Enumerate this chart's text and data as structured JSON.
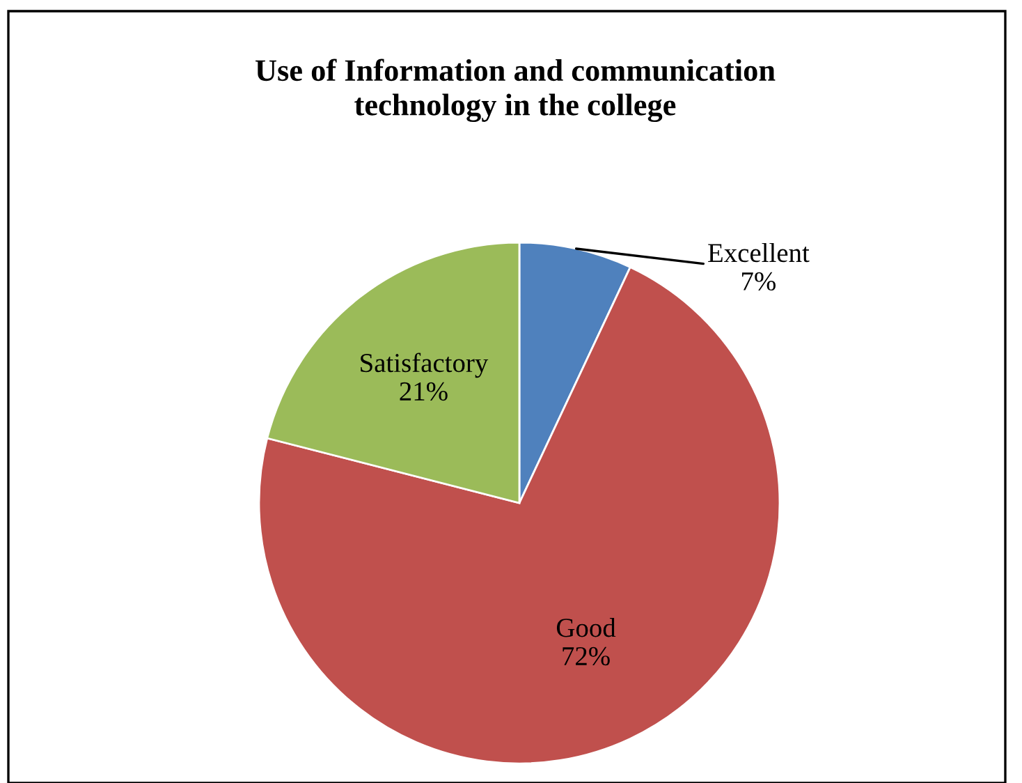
{
  "chart_data": {
    "type": "pie",
    "title": "Use of Information and communication\ntechnology in the college",
    "categories": [
      "Excellent",
      "Good",
      "Satisfactory"
    ],
    "values": [
      7,
      72,
      21
    ],
    "colors": [
      "#4f81bd",
      "#c0504d",
      "#9bbb59"
    ],
    "value_labels": [
      "7%",
      "72%",
      "21%"
    ]
  }
}
